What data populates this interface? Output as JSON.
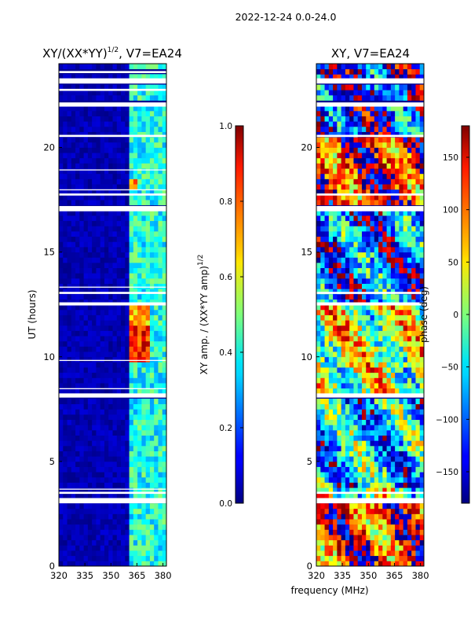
{
  "figure": {
    "suptitle": "2022-12-24 0.0-24.0",
    "common_xlabel": "frequency (MHz)"
  },
  "chart_data": [
    {
      "type": "heatmap",
      "title_main": "XY/(XX*YY)",
      "title_sup": "1/2",
      "title_rest": ", V7=EA24",
      "xlabel": "frequency (MHz)",
      "ylabel": "UT (hours)",
      "xlim": [
        320,
        382
      ],
      "ylim": [
        0,
        24
      ],
      "xticks": [
        320,
        335,
        350,
        365,
        380
      ],
      "yticks": [
        0,
        5,
        10,
        15,
        20
      ],
      "colorbar": {
        "label_main": "XY amp. / (XX*YY amp)",
        "label_sup": "1/2",
        "range": [
          0.0,
          1.0
        ],
        "ticks": [
          "0.0",
          "0.2",
          "0.4",
          "0.6",
          "0.8",
          "1.0"
        ],
        "colormap": "jet"
      },
      "gaps_ut": [
        [
          3.0,
          3.25
        ],
        [
          3.45,
          3.55
        ],
        [
          3.65,
          3.7
        ],
        [
          8.05,
          8.25
        ],
        [
          8.45,
          8.5
        ],
        [
          9.8,
          9.85
        ],
        [
          12.45,
          12.6
        ],
        [
          13.0,
          13.1
        ],
        [
          13.3,
          13.35
        ],
        [
          16.95,
          17.2
        ],
        [
          17.7,
          17.8
        ],
        [
          17.95,
          18.0
        ],
        [
          18.9,
          18.95
        ],
        [
          20.5,
          20.6
        ],
        [
          21.95,
          22.15
        ],
        [
          22.7,
          22.8
        ],
        [
          23.05,
          23.3
        ],
        [
          23.55,
          23.65
        ]
      ],
      "amplitude_features": [
        {
          "freq_range": [
            320,
            361
          ],
          "ut_range": [
            0,
            24
          ],
          "level": 0.05
        },
        {
          "freq_range": [
            361,
            382
          ],
          "ut_range": [
            0,
            24
          ],
          "level": 0.4
        },
        {
          "freq_range": [
            361,
            372
          ],
          "ut_range": [
            9.8,
            11.6
          ],
          "level": 0.85
        },
        {
          "freq_range": [
            361,
            372
          ],
          "ut_range": [
            11.6,
            12.6
          ],
          "level": 0.7
        },
        {
          "freq_range": [
            361,
            366
          ],
          "ut_range": [
            17.9,
            18.4
          ],
          "level": 0.75
        }
      ]
    },
    {
      "type": "heatmap",
      "title_main": "XY, V7=EA24",
      "xlabel": "frequency (MHz)",
      "ylabel": "",
      "xlim": [
        320,
        382
      ],
      "ylim": [
        0,
        24
      ],
      "xticks": [
        320,
        335,
        350,
        365,
        380
      ],
      "yticks": [
        0,
        5,
        10,
        15,
        20
      ],
      "colorbar": {
        "label_main": "phase (deg)",
        "range": [
          -180,
          180
        ],
        "ticks": [
          "−150",
          "−100",
          "−50",
          "0",
          "50",
          "100",
          "150"
        ],
        "tick_values": [
          -150,
          -100,
          -50,
          0,
          50,
          100,
          150
        ],
        "colormap": "jet"
      },
      "gaps_ut": [
        [
          3.0,
          3.25
        ],
        [
          3.45,
          3.55
        ],
        [
          8.05,
          8.25
        ],
        [
          12.45,
          12.6
        ],
        [
          13.0,
          13.1
        ],
        [
          16.95,
          17.2
        ],
        [
          17.7,
          17.8
        ],
        [
          20.5,
          20.6
        ],
        [
          21.95,
          22.15
        ],
        [
          23.05,
          23.3
        ]
      ],
      "phase_features": [
        {
          "ut_range": [
            0,
            3
          ],
          "phase": 120
        },
        {
          "ut_range": [
            3.7,
            8
          ],
          "phase": -60
        },
        {
          "ut_range": [
            8.3,
            12.4
          ],
          "phase": 20
        },
        {
          "ut_range": [
            12.6,
            17
          ],
          "phase": -100
        },
        {
          "ut_range": [
            17.2,
            20.5
          ],
          "phase": 130
        },
        {
          "ut_range": [
            20.6,
            24
          ],
          "phase": -130
        }
      ]
    }
  ]
}
